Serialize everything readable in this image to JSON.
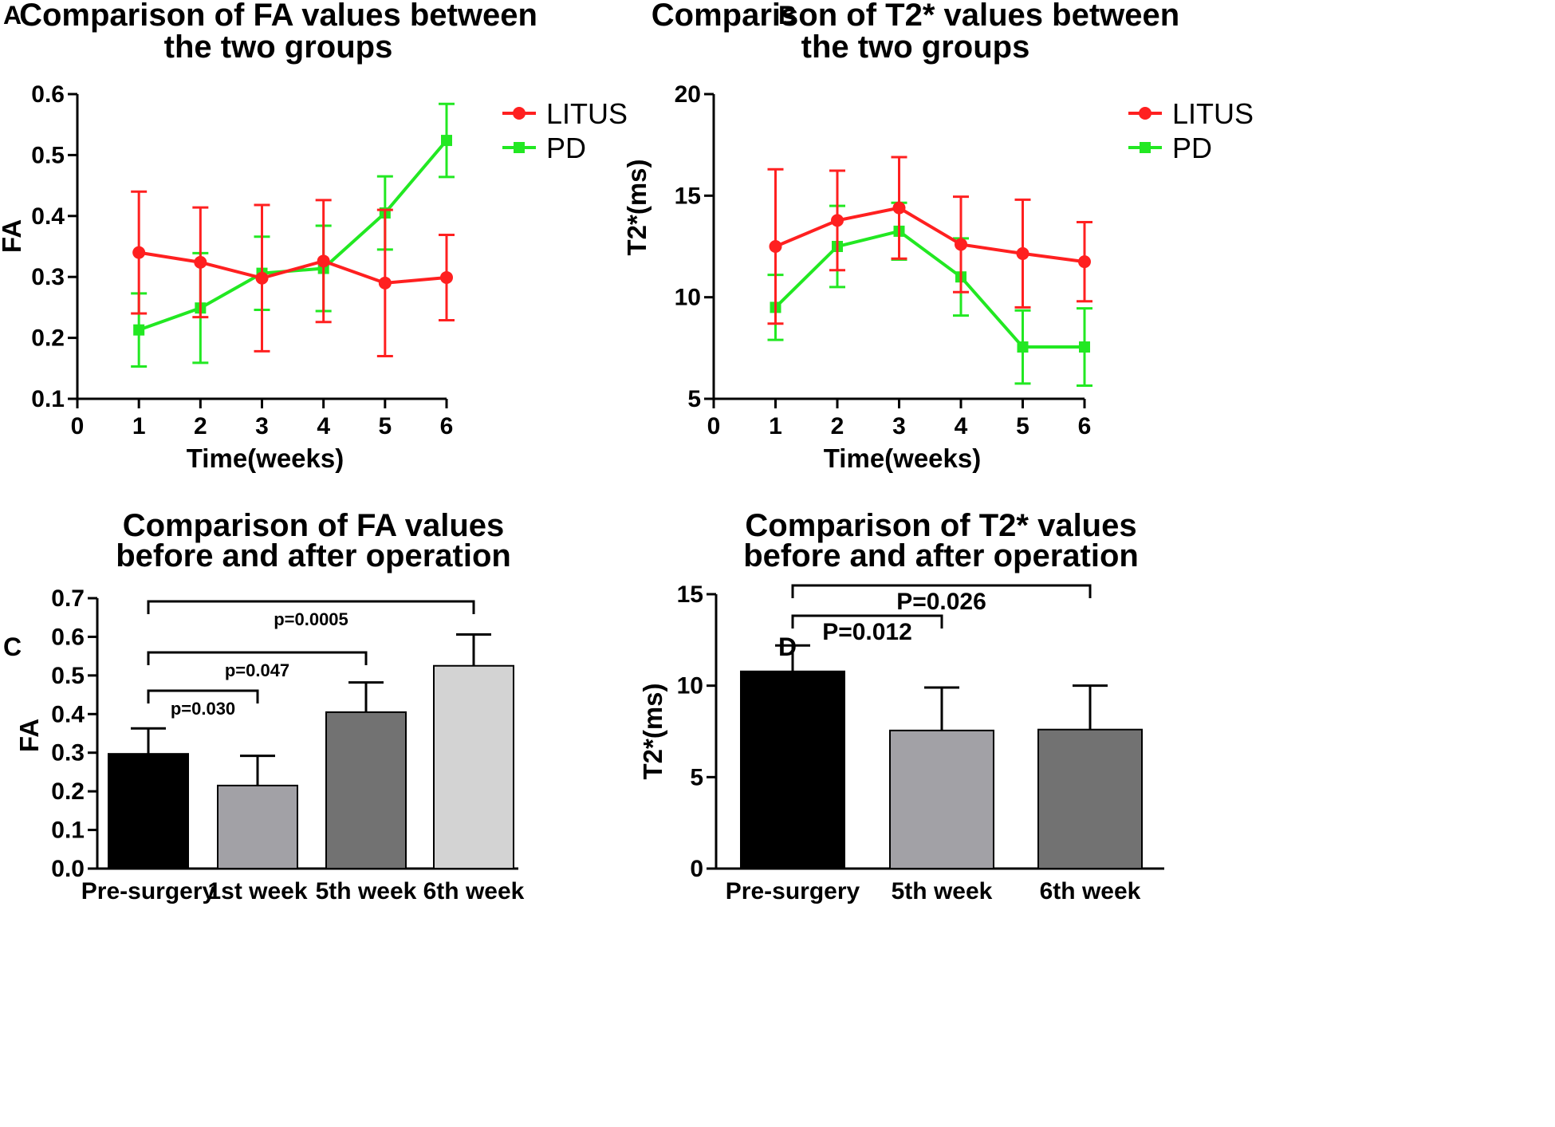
{
  "panels": {
    "A": "A",
    "B": "B",
    "C": "C",
    "D": "D"
  },
  "chart_data": [
    {
      "id": "A",
      "type": "line",
      "title_lines": [
        "Comparison of FA values between",
        "the two groups"
      ],
      "xlabel": "Time(weeks)",
      "ylabel": "FA",
      "xlim": [
        0,
        6
      ],
      "ylim": [
        0.1,
        0.6
      ],
      "xticks": [
        "0",
        "1",
        "2",
        "3",
        "4",
        "5",
        "6"
      ],
      "yticks": [
        "0.1",
        "0.2",
        "0.3",
        "0.4",
        "0.5",
        "0.6"
      ],
      "x": [
        1,
        2,
        3,
        4,
        5,
        6
      ],
      "series": [
        {
          "name": "LITUS",
          "color": "#ff2020",
          "marker": "circle",
          "values": [
            0.34,
            0.324,
            0.298,
            0.326,
            0.29,
            0.299
          ],
          "err": [
            0.1,
            0.09,
            0.12,
            0.1,
            0.12,
            0.07
          ]
        },
        {
          "name": "PD",
          "color": "#22e822",
          "marker": "square",
          "values": [
            0.213,
            0.249,
            0.306,
            0.314,
            0.405,
            0.524
          ],
          "err": [
            0.06,
            0.09,
            0.06,
            0.07,
            0.06,
            0.06
          ]
        }
      ]
    },
    {
      "id": "B",
      "type": "line",
      "title_lines": [
        "Comparison of T2* values between",
        "the two groups"
      ],
      "xlabel": "Time(weeks)",
      "ylabel": "T2*(ms)",
      "xlim": [
        0,
        6
      ],
      "ylim": [
        5,
        20
      ],
      "xticks": [
        "0",
        "1",
        "2",
        "3",
        "4",
        "5",
        "6"
      ],
      "yticks": [
        "5",
        "10",
        "15",
        "20"
      ],
      "x": [
        1,
        2,
        3,
        4,
        5,
        6
      ],
      "series": [
        {
          "name": "LITUS",
          "color": "#ff2020",
          "marker": "circle",
          "values": [
            12.5,
            13.78,
            14.4,
            12.6,
            12.15,
            11.75
          ],
          "err": [
            3.8,
            2.45,
            2.5,
            2.35,
            2.65,
            1.95
          ]
        },
        {
          "name": "PD",
          "color": "#22e822",
          "marker": "square",
          "values": [
            9.5,
            12.5,
            13.25,
            11.0,
            7.55,
            7.55
          ],
          "err": [
            1.6,
            2.0,
            1.4,
            1.9,
            1.8,
            1.9
          ]
        }
      ]
    },
    {
      "id": "C",
      "type": "bar",
      "title_lines": [
        "Comparison of FA values",
        "before and after operation"
      ],
      "ylabel": "FA",
      "ylim": [
        0.0,
        0.7
      ],
      "yticks": [
        "0.0",
        "0.1",
        "0.2",
        "0.3",
        "0.4",
        "0.5",
        "0.6",
        "0.7"
      ],
      "categories": [
        "Pre-surgery",
        "1st week",
        "5th week",
        "6th week"
      ],
      "values": [
        0.297,
        0.215,
        0.405,
        0.525
      ],
      "err": [
        0.066,
        0.077,
        0.077,
        0.081
      ],
      "colors": [
        "#000000",
        "#a2a1a6",
        "#727272",
        "#d3d3d3"
      ],
      "comparisons": [
        {
          "from": 0,
          "to": 1,
          "label": "p=0.030"
        },
        {
          "from": 0,
          "to": 2,
          "label": "p=0.047"
        },
        {
          "from": 0,
          "to": 3,
          "label": "p=0.0005"
        }
      ]
    },
    {
      "id": "D",
      "type": "bar",
      "title_lines": [
        "Comparison of T2* values",
        "before and after operation"
      ],
      "ylabel": "T2*(ms)",
      "ylim": [
        0,
        15
      ],
      "yticks": [
        "0",
        "5",
        "10",
        "15"
      ],
      "categories": [
        "Pre-surgery",
        "5th week",
        "6th week"
      ],
      "values": [
        10.78,
        7.55,
        7.6
      ],
      "err": [
        1.42,
        2.35,
        2.4
      ],
      "colors": [
        "#000000",
        "#a2a1a6",
        "#727272"
      ],
      "comparisons": [
        {
          "from": 0,
          "to": 1,
          "label": "P=0.012"
        },
        {
          "from": 0,
          "to": 2,
          "label": "P=0.026"
        }
      ]
    }
  ]
}
